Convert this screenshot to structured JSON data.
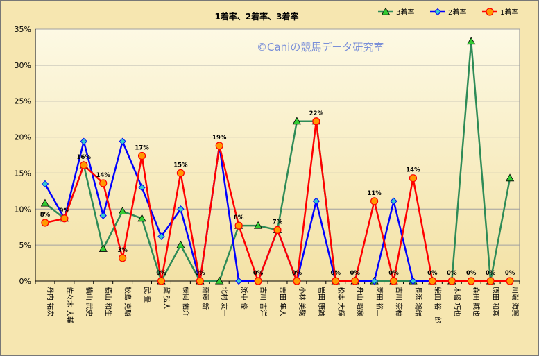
{
  "chart_data": {
    "type": "line",
    "title": "1着率、2着率、3着率",
    "watermark": "©Caniの競馬データ研究室",
    "categories": [
      "丹内 祐次",
      "佐々木 大輔",
      "横山 武史",
      "横山 和生",
      "鮫島 克駿",
      "武 豊",
      "黛 弘人",
      "藤岡 佑介",
      "斎藤 新",
      "北村 友一",
      "浜中 俊",
      "古川 吉洋",
      "吉田 隼人",
      "小林 美駒",
      "岩田 康誠",
      "松本 大輝",
      "舟山 瑠泉",
      "菱田 裕二",
      "古川 奈穂",
      "長浜 鴻緒",
      "柴田 裕一郎",
      "木幡 巧也",
      "森田 誠也",
      "原田 和真",
      "川端 海翼"
    ],
    "ylim": [
      0,
      35
    ],
    "yticks": [
      0,
      5,
      10,
      15,
      20,
      25,
      30,
      35
    ],
    "ytick_labels": [
      "0%",
      "5%",
      "10%",
      "15%",
      "20%",
      "25%",
      "30%",
      "35%"
    ],
    "grid": true,
    "legend_position": "top-right",
    "series": [
      {
        "name": "3着率",
        "color": "#2e8b57",
        "marker": "triangle",
        "marker_fill": "#33cc33",
        "values": [
          10.8,
          8.7,
          16.1,
          4.5,
          9.7,
          8.7,
          0,
          5.0,
          0,
          0,
          7.7,
          7.7,
          7.1,
          22.2,
          22.2,
          0,
          0,
          0,
          0,
          0,
          0,
          0,
          33.3,
          0,
          14.3
        ]
      },
      {
        "name": "2着率",
        "color": "#0000ff",
        "marker": "diamond",
        "marker_fill": "#33cccc",
        "values": [
          13.5,
          8.7,
          19.4,
          9.1,
          19.4,
          13.0,
          6.2,
          10.0,
          0,
          18.8,
          0,
          0,
          7.1,
          0,
          11.1,
          0,
          0,
          0,
          11.1,
          0,
          0,
          0,
          0,
          0,
          0
        ]
      },
      {
        "name": "1着率",
        "color": "#ff0000",
        "marker": "circle",
        "marker_fill": "#ff9900",
        "values": [
          8.1,
          8.7,
          16.1,
          13.6,
          3.2,
          17.4,
          0,
          15.0,
          0,
          18.8,
          7.7,
          0,
          7.1,
          0,
          22.2,
          0,
          0,
          11.1,
          0,
          14.3,
          0,
          0,
          0,
          0,
          0
        ],
        "data_labels": [
          "8%",
          "9%",
          "16%",
          "14%",
          "3%",
          "17%",
          "0%",
          "15%",
          "0%",
          "19%",
          "8%",
          "0%",
          "7%",
          "0%",
          "22%",
          "0%",
          "0%",
          "11%",
          "0%",
          "14%",
          "0%",
          "0%",
          "0%",
          "0%",
          "0%"
        ]
      }
    ]
  }
}
